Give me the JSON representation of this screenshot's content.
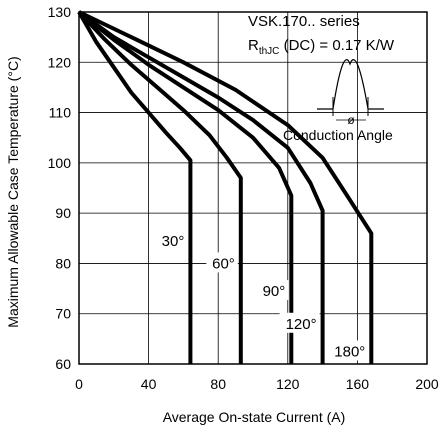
{
  "chart_data": {
    "type": "line",
    "title": "",
    "xlabel": "Average  On-state  Current  (A)",
    "ylabel": "Maximum  Allowable  Case  Temperature  (°C)",
    "xlim": [
      0,
      200
    ],
    "ylim": [
      60,
      130
    ],
    "xticks": [
      0,
      40,
      80,
      120,
      160,
      200
    ],
    "yticks": [
      60,
      70,
      80,
      90,
      100,
      110,
      120,
      130
    ],
    "grid": true,
    "annotation": {
      "line1": "VSK.170..  series",
      "rth_main": "R",
      "rth_sub": "thJC",
      "rth_rest": " (DC) = 0.17 K/W",
      "phi_symbol": "ø",
      "conduction_label": "Conduction  Angle"
    },
    "series": [
      {
        "name": "30°",
        "x": [
          0,
          10,
          20,
          30,
          40,
          50,
          58,
          64,
          64
        ],
        "y": [
          130,
          124,
          119,
          114,
          110,
          106,
          103,
          100.5,
          60
        ]
      },
      {
        "name": "60°",
        "x": [
          0,
          15,
          30,
          45,
          60,
          75,
          85,
          93,
          93
        ],
        "y": [
          130,
          124.5,
          119.5,
          115,
          110.5,
          105.5,
          101,
          97,
          60
        ]
      },
      {
        "name": "90°",
        "x": [
          0,
          20,
          40,
          60,
          80,
          100,
          115,
          122,
          122
        ],
        "y": [
          130,
          124.5,
          119.5,
          115,
          110.5,
          105,
          99,
          93.5,
          60
        ]
      },
      {
        "name": "120°",
        "x": [
          0,
          20,
          40,
          60,
          80,
          100,
          120,
          133,
          140,
          140
        ],
        "y": [
          130,
          125,
          121,
          117,
          113,
          108.5,
          103,
          96,
          90.5,
          60
        ]
      },
      {
        "name": "180°",
        "x": [
          0,
          30,
          60,
          90,
          120,
          140,
          155,
          168,
          168
        ],
        "y": [
          130,
          125,
          120,
          114.5,
          107.5,
          101,
          93,
          86,
          60
        ]
      }
    ]
  }
}
